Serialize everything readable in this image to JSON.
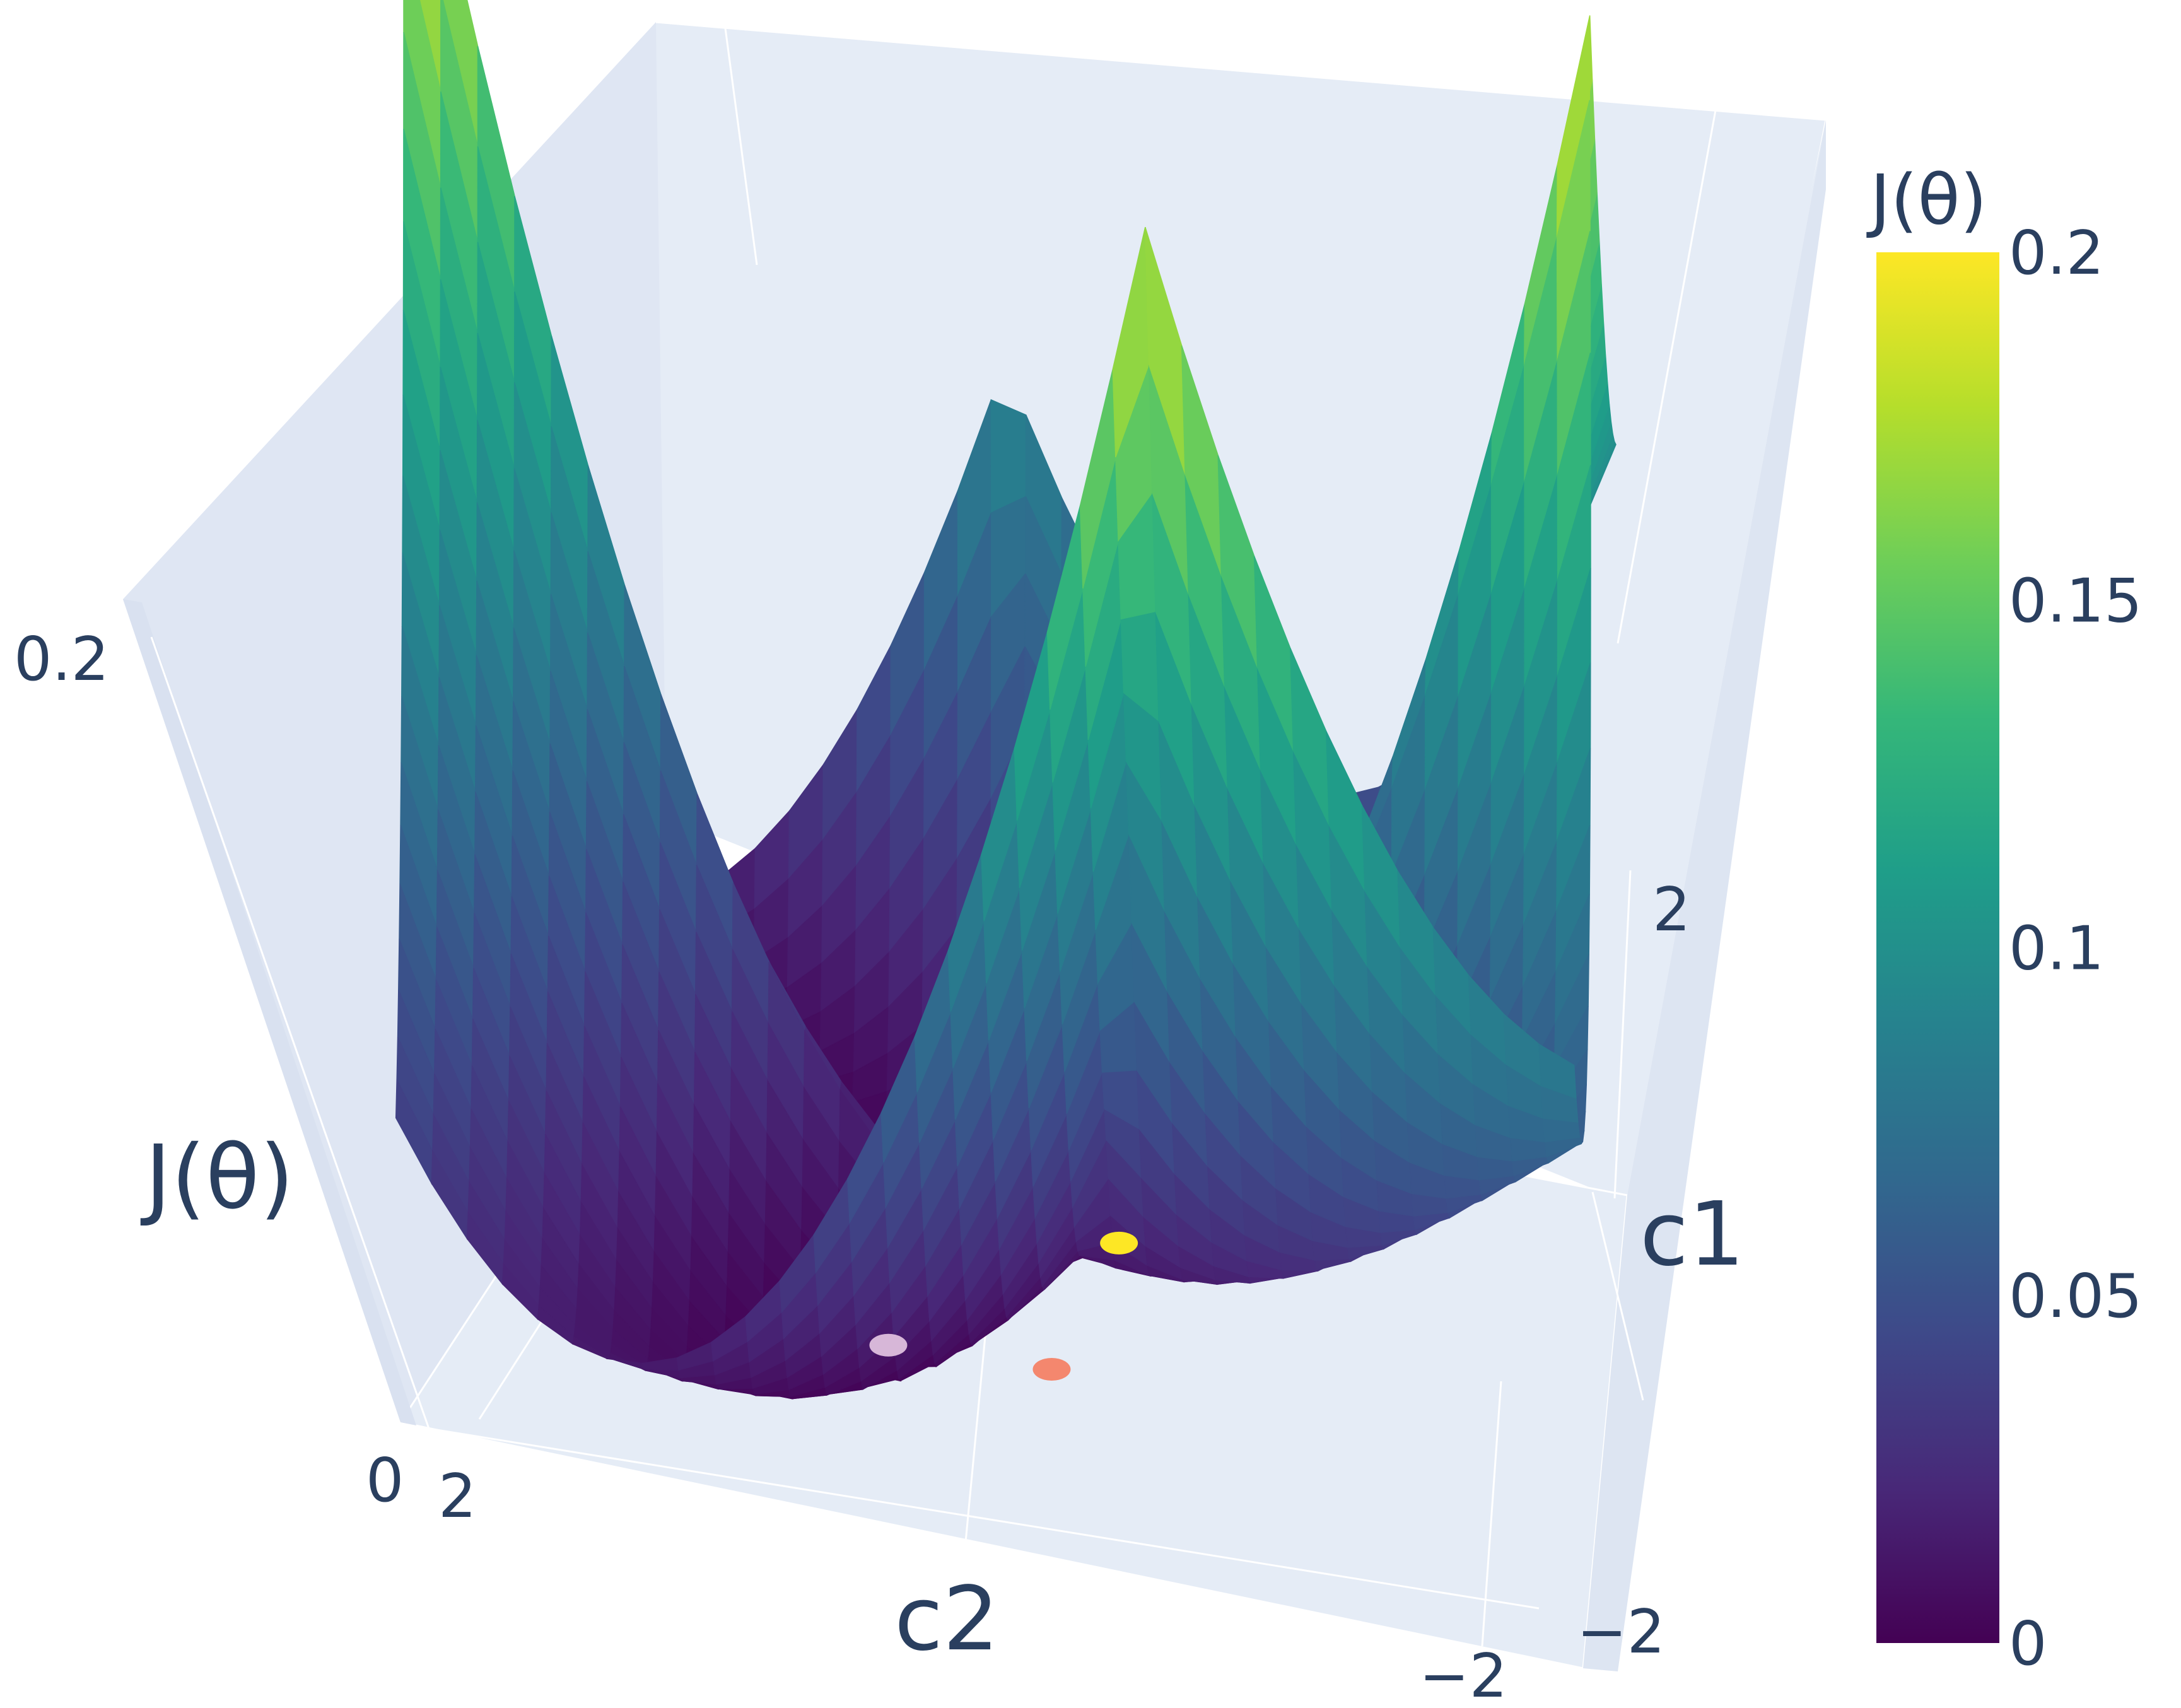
{
  "chart_data": {
    "type": "surface",
    "title": "",
    "axes": {
      "x": {
        "label": "c2",
        "ticks": [
          "2",
          "−2"
        ],
        "range": [
          -2.5,
          2.5
        ]
      },
      "y": {
        "label": "c1",
        "ticks": [
          "2",
          "−2"
        ],
        "range": [
          -2.5,
          2.5
        ]
      },
      "z": {
        "label": "J(θ)",
        "ticks": [
          "0",
          "0.2"
        ],
        "range": [
          0,
          0.2
        ]
      }
    },
    "colorbar": {
      "title": "J(θ)",
      "colorscale": "viridis",
      "range": [
        0,
        0.2
      ],
      "ticks": [
        "0",
        "0.05",
        "0.1",
        "0.15",
        "0.2"
      ],
      "colors": [
        "#440154",
        "#482878",
        "#3e4989",
        "#31688e",
        "#26828e",
        "#1f9e89",
        "#35b779",
        "#6ece58",
        "#b5de2b",
        "#fde725"
      ]
    },
    "grid": true,
    "background": "#e5ecf6",
    "markers": [
      {
        "name": "",
        "color": "#fde725",
        "c1": 0.0,
        "c2": -0.45,
        "J": 0.012
      },
      {
        "name": "",
        "color": "#f4876e",
        "c1": -1.0,
        "c2": -0.2,
        "J": 0.006
      },
      {
        "name": "",
        "color": "#d7b7d8",
        "c1": -0.8,
        "c2": 0.5,
        "J": 0.002
      }
    ]
  }
}
